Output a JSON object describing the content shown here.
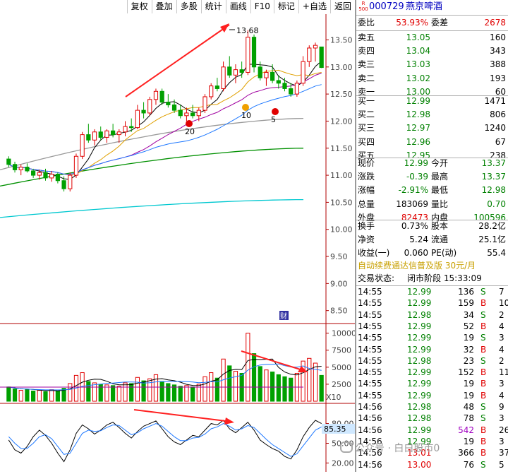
{
  "toolbar": {
    "items": [
      "复权",
      "叠加",
      "多股",
      "统计",
      "画线",
      "F10",
      "标记",
      "+自选",
      "返回"
    ]
  },
  "stock": {
    "badge_top": "R",
    "badge_bottom": "500",
    "code": "000729",
    "name": "燕京啤酒"
  },
  "quote": {
    "weibi_label": "委比",
    "weibi_value": "53.93%",
    "weicha_label": "委差",
    "weicha_value": "2678",
    "asks": [
      {
        "label": "卖五",
        "price": "13.05",
        "vol": "160"
      },
      {
        "label": "卖四",
        "price": "13.04",
        "vol": "343"
      },
      {
        "label": "卖三",
        "price": "13.03",
        "vol": "388"
      },
      {
        "label": "卖二",
        "price": "13.02",
        "vol": "193"
      },
      {
        "label": "卖一",
        "price": "13.00",
        "vol": "60"
      }
    ],
    "bids": [
      {
        "label": "买一",
        "price": "12.99",
        "vol": "1471"
      },
      {
        "label": "买二",
        "price": "12.98",
        "vol": "806"
      },
      {
        "label": "买三",
        "price": "12.97",
        "vol": "1240"
      },
      {
        "label": "买四",
        "price": "12.96",
        "vol": "67"
      },
      {
        "label": "买五",
        "price": "12.95",
        "vol": "238"
      }
    ],
    "stats": [
      {
        "l1": "现价",
        "v1": "12.99",
        "c1": "green",
        "l2": "今开",
        "v2": "13.37",
        "c2": "green"
      },
      {
        "l1": "涨跌",
        "v1": "-0.39",
        "c1": "green",
        "l2": "最高",
        "v2": "13.37",
        "c2": "green"
      },
      {
        "l1": "涨幅",
        "v1": "-2.91%",
        "c1": "green",
        "l2": "最低",
        "v2": "12.98",
        "c2": "green"
      },
      {
        "l1": "总量",
        "v1": "183069",
        "c1": "black",
        "l2": "量比",
        "v2": "0.70",
        "c2": "green"
      },
      {
        "l1": "外盘",
        "v1": "82473",
        "c1": "red",
        "l2": "内盘",
        "v2": "100596",
        "c2": "green"
      }
    ],
    "stats2": [
      {
        "l1": "换手",
        "v1": "0.73%",
        "l2": "股本",
        "v2": "28.2亿"
      },
      {
        "l1": "净资",
        "v1": "5.24",
        "l2": "流通",
        "v2": "25.1亿"
      },
      {
        "l1": "收益(一)",
        "v1": "0.060",
        "l2": "PE(动)",
        "v2": "55.4"
      }
    ],
    "promo": "自动续费通达信普及版  30元/月",
    "trade_status_label": "交易状态:",
    "trade_status_value": "闭市阶段 15:33:09"
  },
  "ticks": [
    {
      "t": "14:55",
      "p": "12.99",
      "v": "136",
      "d": "S",
      "n": "7"
    },
    {
      "t": "14:55",
      "p": "12.99",
      "v": "159",
      "d": "B",
      "n": "10"
    },
    {
      "t": "14:55",
      "p": "12.98",
      "v": "34",
      "d": "S",
      "n": "2"
    },
    {
      "t": "14:55",
      "p": "12.99",
      "v": "52",
      "d": "B",
      "n": "4"
    },
    {
      "t": "14:55",
      "p": "12.99",
      "v": "19",
      "d": "S",
      "n": "3"
    },
    {
      "t": "14:55",
      "p": "12.99",
      "v": "32",
      "d": "B",
      "n": "4"
    },
    {
      "t": "14:55",
      "p": "12.98",
      "v": "23",
      "d": "S",
      "n": "2"
    },
    {
      "t": "14:55",
      "p": "12.99",
      "v": "152",
      "d": "B",
      "n": "11"
    },
    {
      "t": "14:55",
      "p": "12.99",
      "v": "19",
      "d": "B",
      "n": "3"
    },
    {
      "t": "14:55",
      "p": "12.99",
      "v": "19",
      "d": "B",
      "n": "4"
    },
    {
      "t": "14:56",
      "p": "12.98",
      "v": "48",
      "d": "S",
      "n": "9"
    },
    {
      "t": "14:56",
      "p": "12.98",
      "v": "78",
      "d": "S",
      "n": "3"
    },
    {
      "t": "14:56",
      "p": "12.99",
      "v": "542",
      "d": "B",
      "n": "26"
    },
    {
      "t": "14:56",
      "p": "12.99",
      "v": "19",
      "d": "B",
      "n": "3"
    },
    {
      "t": "14:56",
      "p": "13.01",
      "v": "366",
      "d": "B",
      "n": "37"
    },
    {
      "t": "14:56",
      "p": "13.00",
      "v": "76",
      "d": "S",
      "n": "5"
    }
  ],
  "chart_data": {
    "type": "candlestick",
    "price_axis": {
      "ticks": [
        "13.50",
        "13.00",
        "12.50",
        "12.00",
        "11.50",
        "11.00",
        "10.50",
        "10.00",
        "9.50",
        "9.00",
        "8.50"
      ],
      "range": [
        8.3,
        13.95
      ]
    },
    "volume_axis": {
      "ticks": [
        "10000",
        "7500",
        "5000",
        "2500"
      ],
      "multiplier_label": "X10"
    },
    "indicator_axis": {
      "ticks": [
        "80.00",
        "50.00",
        "20.00"
      ],
      "current": "85.35"
    },
    "annotations": {
      "high": "13.68",
      "markers": [
        "20",
        "10",
        "5"
      ],
      "badge": "财"
    },
    "candles": [
      [
        11.3,
        11.35,
        11.15,
        11.2
      ],
      [
        11.2,
        11.25,
        11.05,
        11.1
      ],
      [
        11.1,
        11.2,
        11.0,
        11.15
      ],
      [
        11.15,
        11.22,
        11.05,
        11.08
      ],
      [
        11.08,
        11.12,
        10.95,
        11.0
      ],
      [
        11.0,
        11.1,
        10.92,
        11.05
      ],
      [
        11.05,
        11.12,
        10.9,
        10.95
      ],
      [
        10.95,
        11.08,
        10.88,
        11.02
      ],
      [
        11.02,
        11.05,
        10.85,
        10.9
      ],
      [
        10.9,
        10.98,
        10.7,
        10.75
      ],
      [
        10.75,
        11.05,
        10.7,
        11.0
      ],
      [
        11.0,
        11.4,
        10.95,
        11.35
      ],
      [
        11.35,
        11.8,
        11.3,
        11.75
      ],
      [
        11.75,
        11.95,
        11.6,
        11.65
      ],
      [
        11.65,
        11.85,
        11.55,
        11.8
      ],
      [
        11.8,
        11.9,
        11.65,
        11.7
      ],
      [
        11.7,
        11.85,
        11.6,
        11.82
      ],
      [
        11.82,
        11.95,
        11.7,
        11.75
      ],
      [
        11.75,
        11.85,
        11.6,
        11.8
      ],
      [
        11.8,
        12.0,
        11.72,
        11.9
      ],
      [
        11.9,
        12.05,
        11.8,
        11.88
      ],
      [
        11.88,
        12.3,
        11.85,
        12.2
      ],
      [
        12.2,
        12.35,
        12.05,
        12.15
      ],
      [
        12.15,
        12.45,
        12.1,
        12.4
      ],
      [
        12.4,
        12.6,
        12.3,
        12.55
      ],
      [
        12.55,
        12.6,
        12.3,
        12.35
      ],
      [
        12.35,
        12.5,
        12.25,
        12.3
      ],
      [
        12.3,
        12.4,
        12.15,
        12.2
      ],
      [
        12.2,
        12.3,
        12.05,
        12.1
      ],
      [
        12.1,
        12.25,
        12.0,
        12.15
      ],
      [
        12.15,
        12.3,
        12.05,
        12.1
      ],
      [
        12.1,
        12.25,
        12.0,
        12.2
      ],
      [
        12.2,
        12.5,
        12.15,
        12.45
      ],
      [
        12.45,
        12.7,
        12.4,
        12.65
      ],
      [
        12.65,
        12.8,
        12.55,
        12.6
      ],
      [
        12.6,
        13.1,
        12.55,
        13.0
      ],
      [
        13.0,
        13.2,
        12.8,
        12.85
      ],
      [
        12.85,
        13.05,
        12.7,
        12.95
      ],
      [
        12.95,
        13.1,
        12.8,
        12.9
      ],
      [
        12.9,
        13.68,
        12.85,
        13.55
      ],
      [
        13.55,
        13.6,
        12.9,
        13.0
      ],
      [
        13.0,
        13.1,
        12.75,
        12.8
      ],
      [
        12.8,
        12.95,
        12.65,
        12.9
      ],
      [
        12.9,
        13.05,
        12.7,
        12.75
      ],
      [
        12.75,
        12.85,
        12.6,
        12.7
      ],
      [
        12.7,
        12.8,
        12.55,
        12.6
      ],
      [
        12.6,
        12.7,
        12.45,
        12.5
      ],
      [
        12.5,
        12.75,
        12.45,
        12.7
      ],
      [
        12.7,
        13.2,
        12.65,
        13.1
      ],
      [
        13.1,
        13.4,
        13.0,
        13.35
      ],
      [
        13.35,
        13.45,
        13.1,
        13.4
      ],
      [
        13.37,
        13.37,
        12.98,
        12.99
      ]
    ],
    "volumes": [
      2100,
      1800,
      1600,
      1700,
      1500,
      1600,
      1400,
      1700,
      1500,
      1900,
      2600,
      3800,
      4200,
      2900,
      2700,
      2500,
      2400,
      2300,
      2200,
      2700,
      2600,
      3500,
      3000,
      3300,
      3900,
      2900,
      2600,
      2400,
      2200,
      2300,
      2100,
      2500,
      3600,
      4200,
      3400,
      6200,
      5200,
      4400,
      4100,
      10000,
      7000,
      5100,
      4600,
      4300,
      3900,
      3600,
      3400,
      4100,
      5900,
      6300,
      5600,
      3800
    ],
    "kdj_k": [
      55,
      40,
      35,
      45,
      60,
      70,
      62,
      50,
      35,
      22,
      40,
      65,
      78,
      72,
      64,
      70,
      78,
      82,
      74,
      65,
      58,
      68,
      76,
      80,
      84,
      72,
      60,
      52,
      48,
      55,
      62,
      60,
      70,
      80,
      78,
      85,
      72,
      66,
      74,
      82,
      70,
      55,
      48,
      42,
      38,
      30,
      26,
      40,
      60,
      74,
      85,
      80
    ],
    "kdj_d": [
      60,
      50,
      42,
      42,
      50,
      60,
      63,
      57,
      45,
      33,
      35,
      50,
      65,
      70,
      68,
      69,
      74,
      78,
      77,
      70,
      63,
      66,
      72,
      76,
      80,
      76,
      68,
      60,
      54,
      54,
      58,
      59,
      64,
      72,
      75,
      80,
      76,
      70,
      72,
      77,
      74,
      65,
      56,
      48,
      42,
      36,
      30,
      34,
      46,
      58,
      70,
      75
    ]
  }
}
